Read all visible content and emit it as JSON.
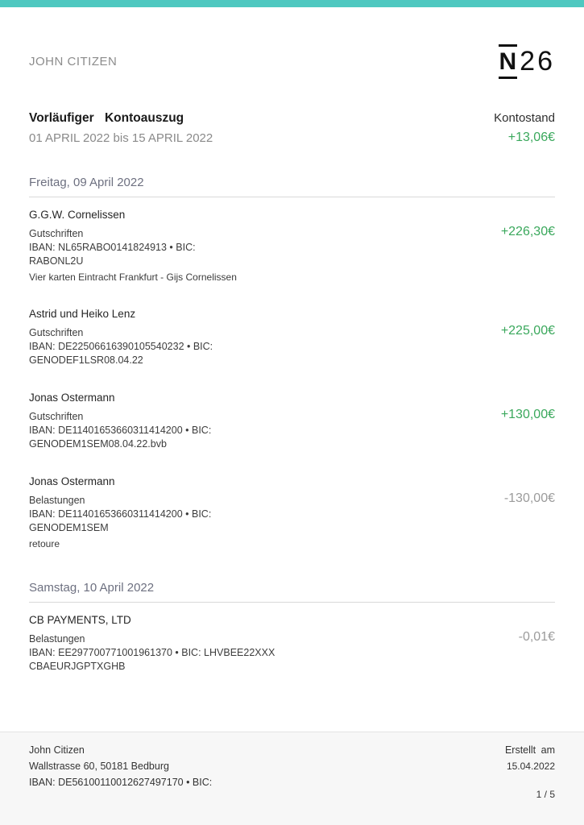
{
  "header": {
    "account_holder": "JOHN CITIZEN",
    "logo": {
      "n": "N",
      "suffix": "26"
    }
  },
  "summary": {
    "title": "Vorläufiger Kontoauszug",
    "date_range": "01 APRIL 2022 bis 15 APRIL 2022",
    "balance_label": "Kontostand",
    "balance_value": "+13,06€"
  },
  "sections": [
    {
      "date_label": "Freitag, 09 April 2022",
      "transactions": [
        {
          "name": "G.G.W. Cornelissen",
          "type": "Gutschriften",
          "detail_line_1": "IBAN: NL65RABO0141824913 • BIC:",
          "detail_line_2": "RABONL2U",
          "note": "Vier karten Eintracht Frankfurt - Gijs Cornelissen",
          "amount": "+226,30€",
          "sign": "positive"
        },
        {
          "name": "Astrid und Heiko Lenz",
          "type": "Gutschriften",
          "detail_line_1": "IBAN: DE22506616390105540232 • BIC:",
          "detail_line_2": "GENODEF1LSR08.04.22",
          "note": "",
          "amount": "+225,00€",
          "sign": "positive"
        },
        {
          "name": "Jonas Ostermann",
          "type": "Gutschriften",
          "detail_line_1": "IBAN: DE11401653660311414200 • BIC:",
          "detail_line_2": "GENODEM1SEM08.04.22.bvb",
          "note": "",
          "amount": "+130,00€",
          "sign": "positive"
        },
        {
          "name": "Jonas Ostermann",
          "type": "Belastungen",
          "detail_line_1": "IBAN: DE11401653660311414200 • BIC:",
          "detail_line_2": "GENODEM1SEM",
          "note": "retoure",
          "amount": "-130,00€",
          "sign": "negative"
        }
      ]
    },
    {
      "date_label": "Samstag, 10 April 2022",
      "transactions": [
        {
          "name": "CB PAYMENTS, LTD",
          "type": "Belastungen",
          "detail_line_1": "IBAN: EE297700771001961370 • BIC: LHVBEE22XXX",
          "detail_line_2": "CBAEURJGPTXGHB",
          "note": "",
          "amount": "-0,01€",
          "sign": "negative"
        }
      ]
    }
  ],
  "footer": {
    "left_lines": [
      "John Citizen",
      "Wallstrasse 60, 50181 Bedburg",
      "IBAN: DE56100110012627497170 • BIC:"
    ],
    "created_label": "Erstellt am",
    "created_date": "15.04.2022",
    "page_number": "1 / 5"
  },
  "colors": {
    "brand_teal": "#4FC8C0",
    "positive_green": "#3AA85C",
    "negative_gray": "#9B9B9B",
    "footer_bg": "#f7f7f7"
  }
}
